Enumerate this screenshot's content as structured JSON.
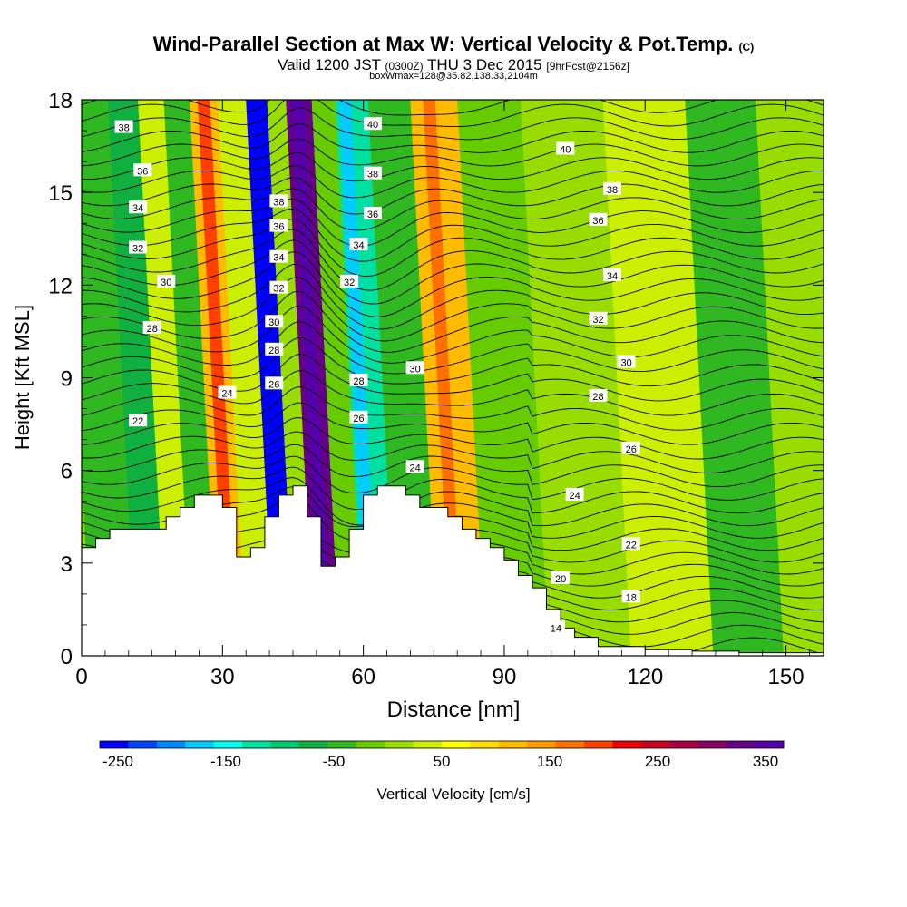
{
  "title": {
    "main": "Wind-Parallel Section at Max W: Vertical Velocity & Pot.Temp.",
    "main_suffix": "(C)",
    "valid_prefix": "Valid 1200 JST",
    "valid_utc": "(0300Z)",
    "valid_date": "THU 3 Dec 2015",
    "valid_fcst": "[9hrFcst@2156z]",
    "box": "boxWmax=128@35.82,138.33,2104m"
  },
  "chart_data": {
    "type": "heatmap",
    "xlabel": "Distance [nm]",
    "ylabel": "Height [Kft MSL]",
    "xlim": [
      0,
      158
    ],
    "ylim": [
      0,
      18
    ],
    "x_ticks": [
      0,
      30,
      60,
      90,
      120,
      150
    ],
    "y_ticks": [
      0,
      3,
      6,
      9,
      12,
      15,
      18
    ],
    "colorbar": {
      "label": "Vertical Velocity [cm/s]",
      "range": [
        -250,
        350
      ],
      "tick_labels": [
        "-250",
        "-150",
        "-50",
        "50",
        "150",
        "250",
        "350"
      ],
      "colors": [
        "#0000ff",
        "#0044ff",
        "#0088ff",
        "#00ccff",
        "#00ffee",
        "#00e0a0",
        "#00c870",
        "#10b040",
        "#30b820",
        "#66cc00",
        "#99dd00",
        "#ccee00",
        "#ffff00",
        "#ffdd00",
        "#ffbb00",
        "#ff9900",
        "#ff7000",
        "#ff4000",
        "#ee0000",
        "#cc0022",
        "#aa0044",
        "#880066",
        "#660088",
        "#5500aa"
      ]
    },
    "vertical_velocity_bands": [
      {
        "x": 6,
        "w": -40
      },
      {
        "x": 13,
        "w": -60
      },
      {
        "x": 19,
        "w": 30
      },
      {
        "x": 24,
        "w": -30
      },
      {
        "x": 30,
        "w": 120
      },
      {
        "x": 36,
        "w": 30
      },
      {
        "x": 42,
        "w": -240
      },
      {
        "x": 45,
        "w": 20
      },
      {
        "x": 50,
        "w": 300
      },
      {
        "x": 56,
        "w": -20
      },
      {
        "x": 60,
        "w": -120
      },
      {
        "x": 70,
        "w": -40
      },
      {
        "x": 78,
        "w": 110
      },
      {
        "x": 90,
        "w": -20
      },
      {
        "x": 105,
        "w": 20
      },
      {
        "x": 125,
        "w": 40
      },
      {
        "x": 140,
        "w": -30
      },
      {
        "x": 155,
        "w": 0
      }
    ],
    "terrain": {
      "x": [
        0,
        3,
        6,
        9,
        12,
        15,
        18,
        21,
        24,
        27,
        30,
        33,
        36,
        39,
        42,
        45,
        48,
        51,
        54,
        57,
        60,
        63,
        66,
        69,
        72,
        75,
        78,
        81,
        84,
        87,
        90,
        93,
        96,
        99,
        102,
        105,
        110,
        120,
        130,
        140,
        150,
        158
      ],
      "height": [
        3.5,
        3.8,
        4.1,
        4.1,
        4.1,
        4.1,
        4.5,
        4.8,
        5.2,
        5.2,
        4.8,
        3.2,
        3.5,
        4.5,
        5.2,
        5.5,
        4.5,
        2.9,
        3.2,
        4.1,
        5.2,
        5.5,
        5.5,
        5.2,
        4.8,
        4.8,
        4.5,
        4.1,
        3.8,
        3.5,
        3.1,
        2.6,
        2.2,
        1.5,
        0.9,
        0.6,
        0.3,
        0.2,
        0.15,
        0.1,
        0.1,
        0.1
      ]
    },
    "isentropes": [
      {
        "theta": "14",
        "y": 0.8
      },
      {
        "theta": "18",
        "y": 1.8
      },
      {
        "theta": "20",
        "y": 2.5
      },
      {
        "theta": "22",
        "y": 3.7
      },
      {
        "theta": "22",
        "y": 7.7
      },
      {
        "theta": "24",
        "y": 5.2
      },
      {
        "theta": "24",
        "y": 8.4
      },
      {
        "theta": "26",
        "y": 6.6
      },
      {
        "theta": "26",
        "y": 8.4
      },
      {
        "theta": "28",
        "y": 8.5
      },
      {
        "theta": "28",
        "y": 9.0
      },
      {
        "theta": "28",
        "y": 11.0
      },
      {
        "theta": "30",
        "y": 9.4
      },
      {
        "theta": "30",
        "y": 12.1
      },
      {
        "theta": "30",
        "y": 10.7
      },
      {
        "theta": "32",
        "y": 13.2
      },
      {
        "theta": "32",
        "y": 11.3
      },
      {
        "theta": "32",
        "y": 12.0
      },
      {
        "theta": "34",
        "y": 14.5
      },
      {
        "theta": "34",
        "y": 12.2
      },
      {
        "theta": "34",
        "y": 12.8
      },
      {
        "theta": "36",
        "y": 15.7
      },
      {
        "theta": "36",
        "y": 13.9
      },
      {
        "theta": "36",
        "y": 14.3
      },
      {
        "theta": "38",
        "y": 17.2
      },
      {
        "theta": "38",
        "y": 15.2
      },
      {
        "theta": "38",
        "y": 15.1
      },
      {
        "theta": "40",
        "y": 17.2
      },
      {
        "theta": "40",
        "y": 16.3
      }
    ],
    "contour_labels": [
      {
        "text": "38",
        "x": 9,
        "y": 17.1
      },
      {
        "text": "36",
        "x": 13,
        "y": 15.7
      },
      {
        "text": "34",
        "x": 12,
        "y": 14.5
      },
      {
        "text": "32",
        "x": 12,
        "y": 13.2
      },
      {
        "text": "30",
        "x": 18,
        "y": 12.1
      },
      {
        "text": "28",
        "x": 15,
        "y": 10.6
      },
      {
        "text": "24",
        "x": 31,
        "y": 8.5
      },
      {
        "text": "22",
        "x": 12,
        "y": 7.6
      },
      {
        "text": "38",
        "x": 42,
        "y": 14.7
      },
      {
        "text": "36",
        "x": 42,
        "y": 13.9
      },
      {
        "text": "34",
        "x": 42,
        "y": 12.9
      },
      {
        "text": "32",
        "x": 42,
        "y": 11.9
      },
      {
        "text": "30",
        "x": 41,
        "y": 10.8
      },
      {
        "text": "28",
        "x": 41,
        "y": 9.9
      },
      {
        "text": "26",
        "x": 41,
        "y": 8.8
      },
      {
        "text": "40",
        "x": 62,
        "y": 17.2
      },
      {
        "text": "38",
        "x": 62,
        "y": 15.6
      },
      {
        "text": "36",
        "x": 62,
        "y": 14.3
      },
      {
        "text": "34",
        "x": 59,
        "y": 13.3
      },
      {
        "text": "32",
        "x": 57,
        "y": 12.1
      },
      {
        "text": "28",
        "x": 59,
        "y": 8.9
      },
      {
        "text": "26",
        "x": 59,
        "y": 7.7
      },
      {
        "text": "30",
        "x": 71,
        "y": 9.3
      },
      {
        "text": "24",
        "x": 71,
        "y": 6.1
      },
      {
        "text": "40",
        "x": 103,
        "y": 16.4
      },
      {
        "text": "38",
        "x": 113,
        "y": 15.1
      },
      {
        "text": "36",
        "x": 110,
        "y": 14.1
      },
      {
        "text": "34",
        "x": 113,
        "y": 12.3
      },
      {
        "text": "32",
        "x": 110,
        "y": 10.9
      },
      {
        "text": "30",
        "x": 116,
        "y": 9.5
      },
      {
        "text": "28",
        "x": 110,
        "y": 8.4
      },
      {
        "text": "26",
        "x": 117,
        "y": 6.7
      },
      {
        "text": "24",
        "x": 105,
        "y": 5.2
      },
      {
        "text": "22",
        "x": 117,
        "y": 3.6
      },
      {
        "text": "20",
        "x": 102,
        "y": 2.5
      },
      {
        "text": "18",
        "x": 117,
        "y": 1.9
      },
      {
        "text": "14",
        "x": 101,
        "y": 0.9
      }
    ]
  }
}
